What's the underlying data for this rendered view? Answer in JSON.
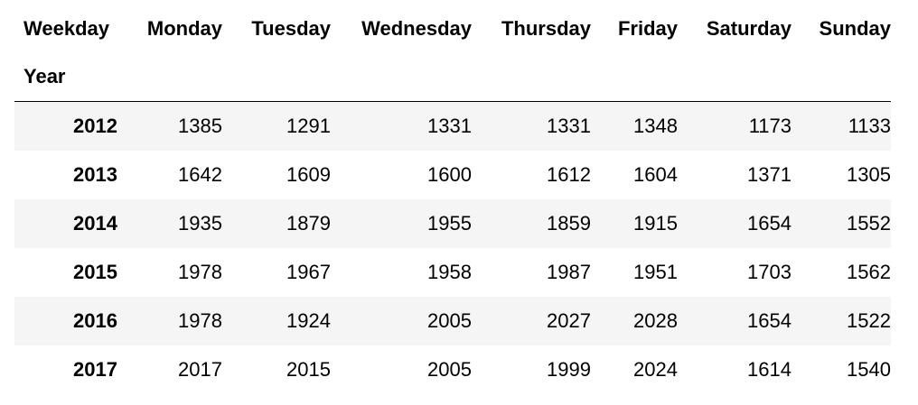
{
  "table": {
    "columns_name": "Weekday",
    "index_name": "Year",
    "columns": [
      "Monday",
      "Tuesday",
      "Wednesday",
      "Thursday",
      "Friday",
      "Saturday",
      "Sunday"
    ],
    "rows": [
      {
        "year": "2012",
        "values": [
          "1385",
          "1291",
          "1331",
          "1331",
          "1348",
          "1173",
          "1133"
        ]
      },
      {
        "year": "2013",
        "values": [
          "1642",
          "1609",
          "1600",
          "1612",
          "1604",
          "1371",
          "1305"
        ]
      },
      {
        "year": "2014",
        "values": [
          "1935",
          "1879",
          "1955",
          "1859",
          "1915",
          "1654",
          "1552"
        ]
      },
      {
        "year": "2015",
        "values": [
          "1978",
          "1967",
          "1958",
          "1987",
          "1951",
          "1703",
          "1562"
        ]
      },
      {
        "year": "2016",
        "values": [
          "1978",
          "1924",
          "2005",
          "2027",
          "2028",
          "1654",
          "1522"
        ]
      },
      {
        "year": "2017",
        "values": [
          "2017",
          "2015",
          "2005",
          "1999",
          "2024",
          "1614",
          "1540"
        ]
      }
    ]
  }
}
